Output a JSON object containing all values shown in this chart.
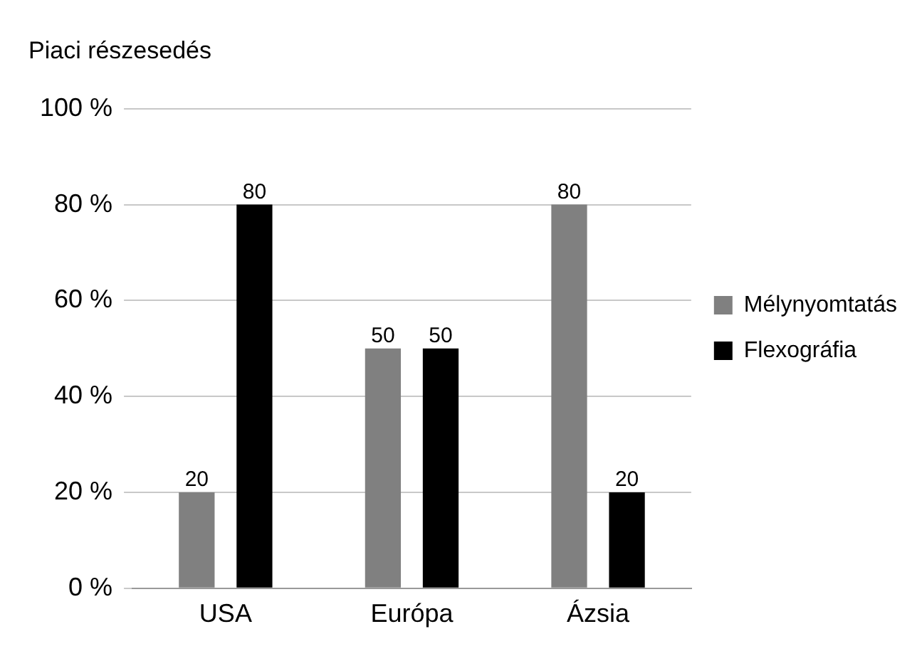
{
  "chart_data": {
    "type": "bar",
    "title": "Piaci részesedés",
    "categories": [
      "USA",
      "Európa",
      "Ázsia"
    ],
    "series": [
      {
        "name": "Mélynyomtatás",
        "color": "#808080",
        "values": [
          20,
          50,
          80
        ]
      },
      {
        "name": "Flexográfia",
        "color": "#000000",
        "values": [
          80,
          50,
          20
        ]
      }
    ],
    "ylim": [
      0,
      100
    ],
    "yticks": [
      {
        "value": 0,
        "label": "0 %"
      },
      {
        "value": 20,
        "label": "20 %"
      },
      {
        "value": 40,
        "label": "40 %"
      },
      {
        "value": 60,
        "label": "60 %"
      },
      {
        "value": 80,
        "label": "80 %"
      },
      {
        "value": 100,
        "label": "100 %"
      }
    ],
    "grid": "y",
    "legend": "right",
    "data_labels": true
  }
}
